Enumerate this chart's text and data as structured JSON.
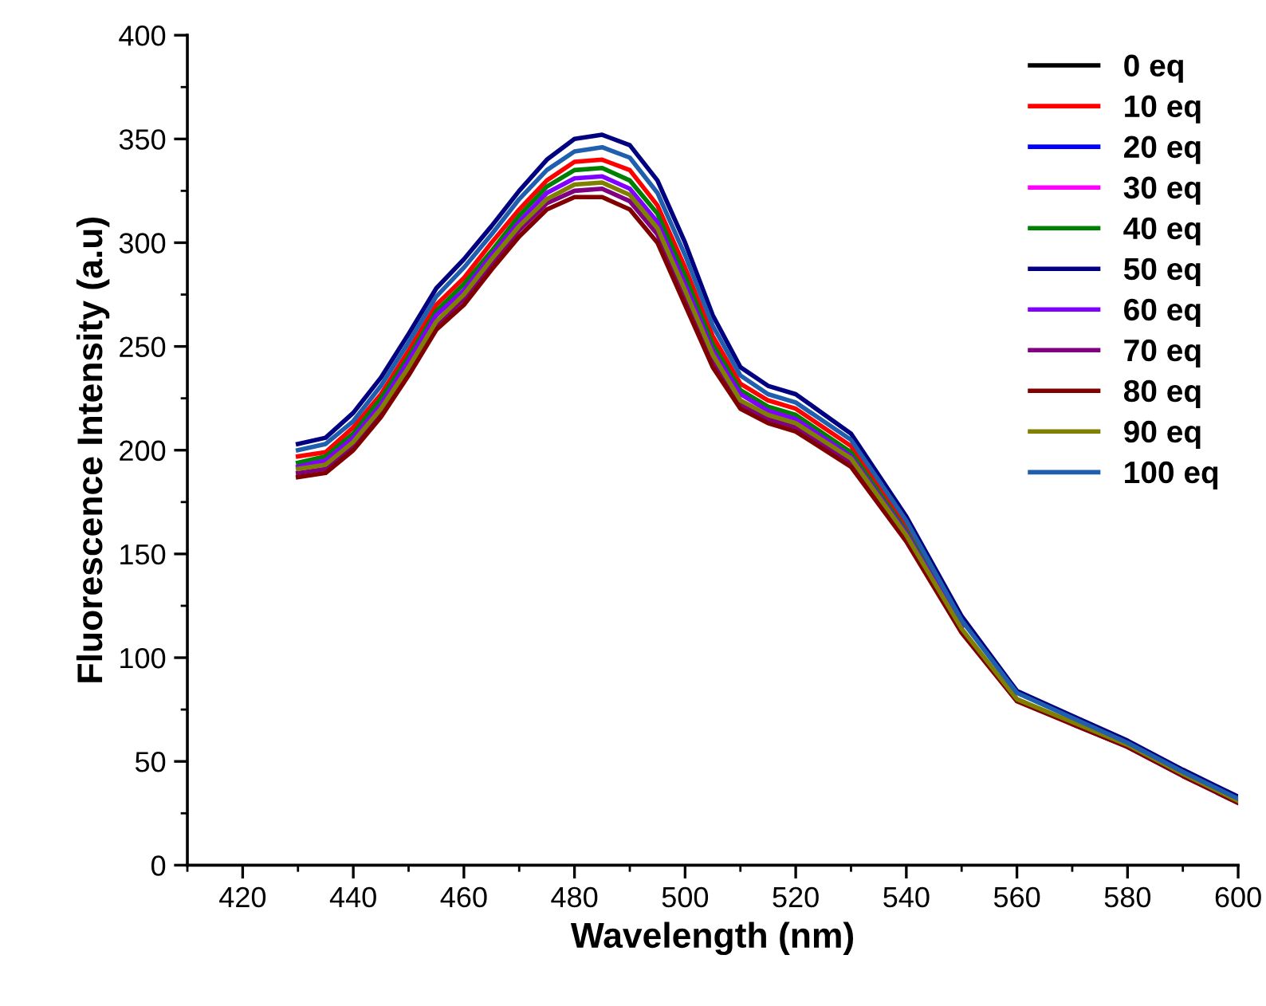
{
  "chart_data": {
    "type": "line",
    "xlabel": "Wavelength (nm)",
    "ylabel": "Fluorescence Intensity (a.u)",
    "x": [
      430,
      435,
      440,
      445,
      450,
      455,
      460,
      465,
      470,
      475,
      480,
      485,
      490,
      495,
      500,
      505,
      510,
      515,
      520,
      530,
      540,
      550,
      560,
      570,
      580,
      590,
      600
    ],
    "xlim": [
      410,
      600
    ],
    "xticks": [
      420,
      440,
      460,
      480,
      500,
      520,
      540,
      560,
      580,
      600
    ],
    "ylim": [
      0,
      400
    ],
    "yticks": [
      0,
      50,
      100,
      150,
      200,
      250,
      300,
      350,
      400
    ],
    "grid": false,
    "legend": "top right",
    "marker": "none",
    "line_style": "solid",
    "series": [
      {
        "name": "0 eq",
        "color": "#000000",
        "values": [
          null,
          null,
          null,
          null,
          null,
          null,
          null,
          null,
          null,
          null,
          null,
          null,
          null,
          null,
          null,
          null,
          null,
          null,
          null,
          null,
          null,
          null,
          null,
          null,
          null,
          null,
          null
        ]
      },
      {
        "name": "10 eq",
        "color": "#ff0000",
        "values": [
          197,
          199,
          211,
          227,
          248,
          270,
          283,
          300,
          316,
          330,
          339,
          340,
          335,
          318,
          288,
          255,
          232,
          224,
          220,
          202,
          163,
          117,
          null,
          null,
          null,
          null,
          null
        ]
      },
      {
        "name": "20 eq",
        "color": "#0000ff",
        "values": [
          null,
          null,
          null,
          null,
          null,
          null,
          null,
          null,
          null,
          null,
          null,
          null,
          null,
          null,
          null,
          null,
          null,
          null,
          null,
          null,
          null,
          null,
          null,
          null,
          null,
          null,
          null
        ]
      },
      {
        "name": "30 eq",
        "color": "#ff00ff",
        "values": [
          null,
          null,
          null,
          null,
          null,
          null,
          null,
          null,
          null,
          null,
          null,
          null,
          null,
          null,
          null,
          null,
          null,
          null,
          null,
          null,
          null,
          null,
          null,
          null,
          null,
          null,
          null
        ]
      },
      {
        "name": "40 eq",
        "color": "#008000",
        "values": [
          194,
          197,
          208,
          225,
          245,
          267,
          280,
          296,
          313,
          327,
          335,
          336,
          330,
          314,
          284,
          251,
          229,
          221,
          217,
          199,
          161,
          116,
          null,
          null,
          null,
          null,
          null
        ]
      },
      {
        "name": "50 eq",
        "color": "#000080",
        "values": [
          203,
          206,
          218,
          235,
          256,
          278,
          292,
          308,
          325,
          340,
          350,
          352,
          347,
          330,
          300,
          265,
          240,
          231,
          227,
          208,
          168,
          120,
          84,
          72,
          60,
          46,
          33
        ]
      },
      {
        "name": "60 eq",
        "color": "#8000ff",
        "values": [
          192,
          195,
          206,
          222,
          243,
          265,
          277,
          294,
          310,
          324,
          331,
          332,
          326,
          310,
          280,
          248,
          227,
          219,
          215,
          197,
          160,
          115,
          null,
          null,
          null,
          null,
          null
        ]
      },
      {
        "name": "70 eq",
        "color": "#800080",
        "values": [
          189,
          191,
          202,
          218,
          238,
          260,
          273,
          290,
          306,
          319,
          325,
          326,
          320,
          304,
          274,
          243,
          222,
          215,
          211,
          194,
          157,
          113,
          80,
          68,
          57,
          43,
          30
        ]
      },
      {
        "name": "80 eq",
        "color": "#800000",
        "values": [
          187,
          189,
          200,
          216,
          236,
          258,
          270,
          287,
          303,
          316,
          322,
          322,
          316,
          300,
          270,
          240,
          220,
          213,
          209,
          192,
          156,
          112,
          79,
          68,
          57,
          43,
          30
        ]
      },
      {
        "name": "90 eq",
        "color": "#808000",
        "values": [
          191,
          193,
          204,
          220,
          240,
          262,
          275,
          292,
          308,
          321,
          328,
          329,
          323,
          307,
          277,
          246,
          224,
          217,
          213,
          196,
          159,
          114,
          80,
          69,
          58,
          44,
          31
        ]
      },
      {
        "name": "100 eq",
        "color": "#1f5fae",
        "values": [
          200,
          203,
          214,
          231,
          252,
          274,
          288,
          304,
          321,
          335,
          344,
          346,
          341,
          324,
          294,
          260,
          236,
          227,
          223,
          205,
          166,
          118,
          83,
          71,
          59,
          45,
          32
        ]
      }
    ]
  }
}
